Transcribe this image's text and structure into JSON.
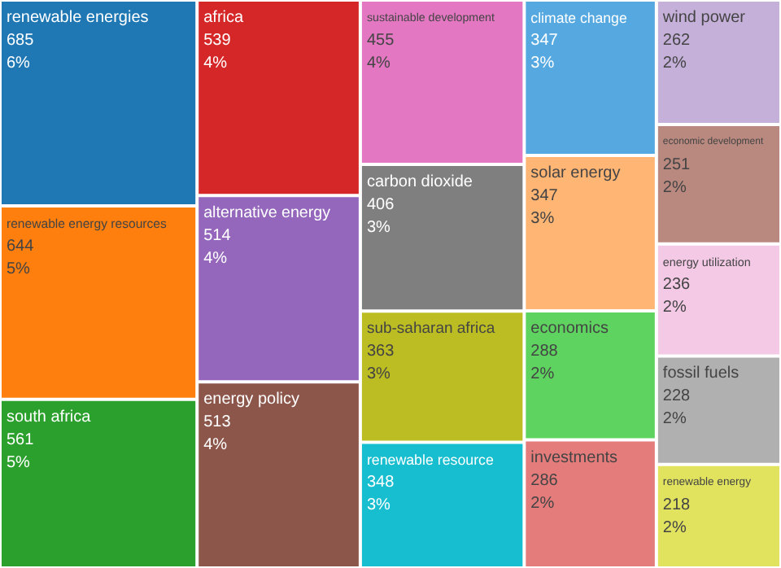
{
  "chart_data": {
    "type": "other",
    "categories": [
      "renewable energies",
      "renewable energy resources",
      "south africa",
      "africa",
      "alternative energy",
      "energy policy",
      "sustainable development",
      "carbon dioxide",
      "sub-saharan africa",
      "renewable resource",
      "climate change",
      "solar energy",
      "economics",
      "investments",
      "wind power",
      "economic development",
      "energy utilization",
      "fossil fuels",
      "renewable energy"
    ],
    "values": [
      685,
      644,
      561,
      539,
      514,
      513,
      455,
      406,
      363,
      348,
      347,
      347,
      288,
      286,
      262,
      251,
      236,
      228,
      218
    ],
    "value_labels": [
      "685\n6%",
      "644\n5%",
      "561\n5%",
      "539\n4%",
      "514\n4%",
      "513\n4%",
      "455\n4%",
      "406\n3%",
      "363\n3%",
      "348\n3%",
      "347\n3%",
      "347\n3%",
      "288\n2%",
      "286\n2%",
      "262\n2%",
      "251\n2%",
      "236\n2%",
      "228\n2%",
      "218\n2%"
    ],
    "colors": [
      "#1f77b4",
      "#ff7f0e",
      "#2ca02c",
      "#d62728",
      "#9467bd",
      "#8c564b",
      "#e377c2",
      "#7f7f7f",
      "#bcbd22",
      "#17becf",
      "#55a8e0",
      "#ffb574",
      "#5fd35f",
      "#e57c7c",
      "#c5b0d9",
      "#b9897f",
      "#f4c9e6",
      "#b0b0b0",
      "#e1e35f"
    ]
  }
}
